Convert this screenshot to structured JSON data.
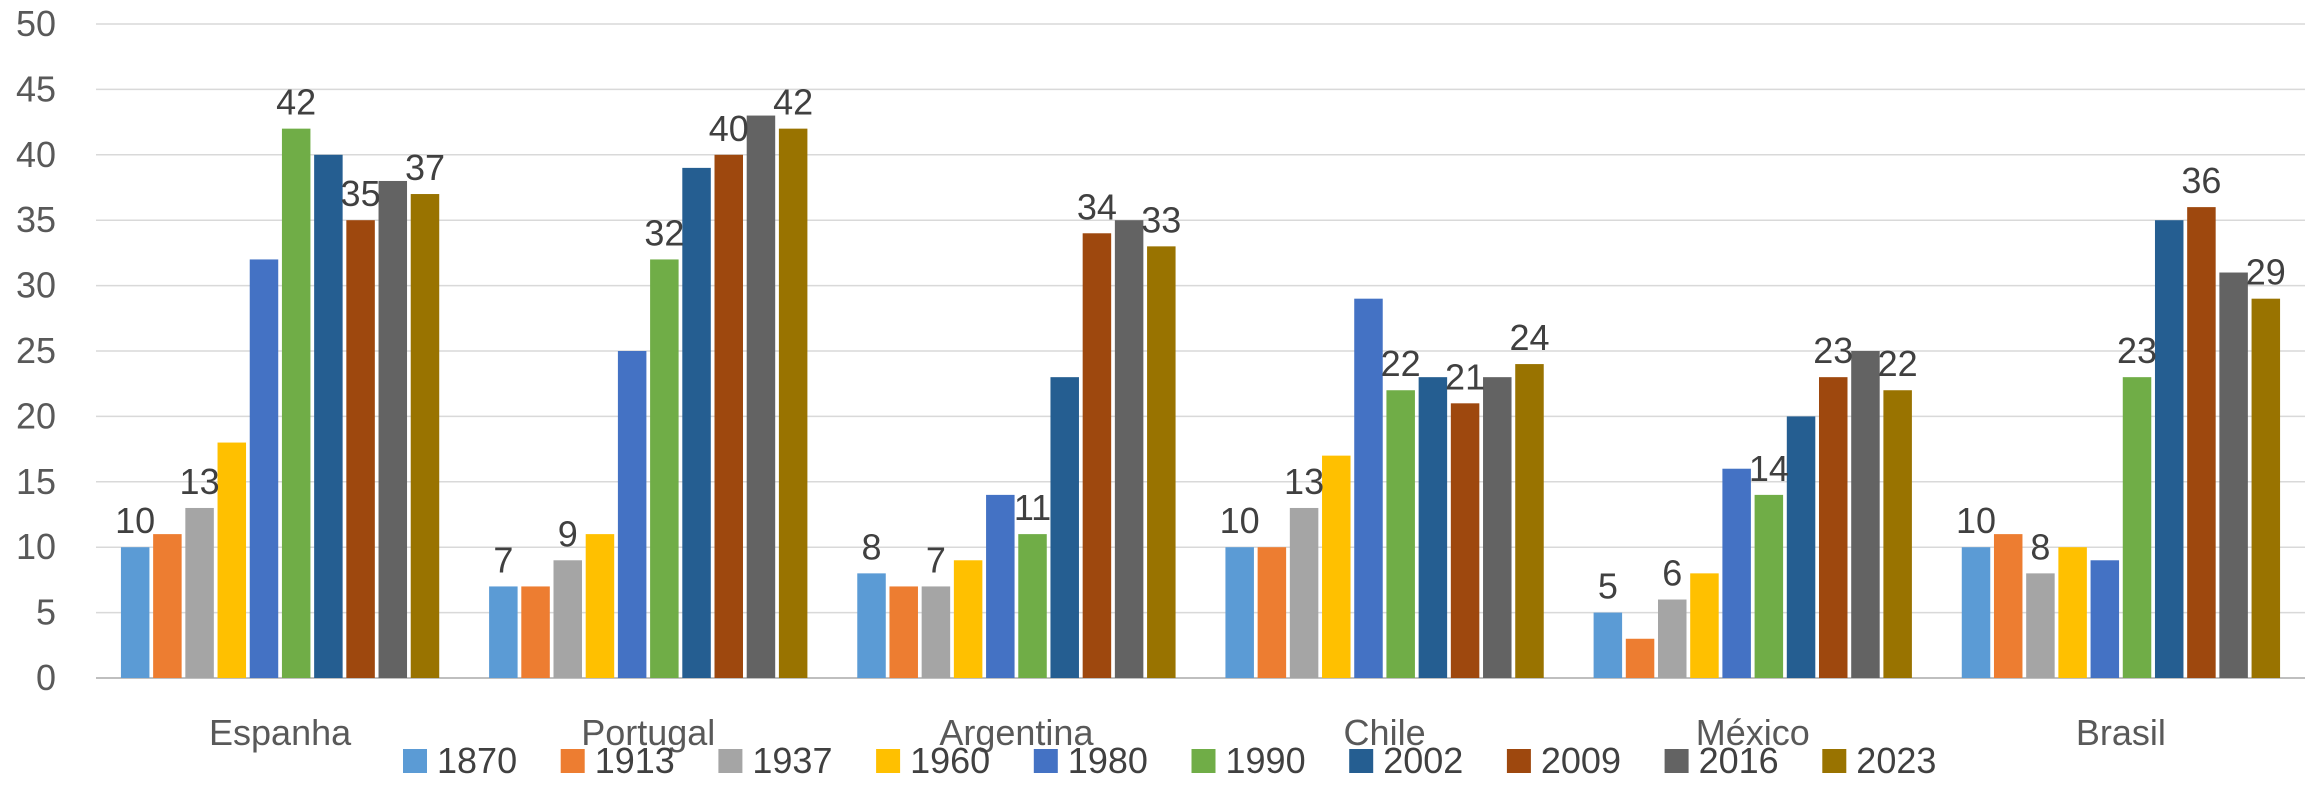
{
  "chart_data": {
    "type": "bar",
    "title": "",
    "xlabel": "",
    "ylabel": "",
    "ylim": [
      0,
      50
    ],
    "yticks": [
      0,
      5,
      10,
      15,
      20,
      25,
      30,
      35,
      40,
      45,
      50
    ],
    "grid": true,
    "legend_position": "bottom",
    "categories": [
      "Espanha",
      "Portugal",
      "Argentina",
      "Chile",
      "México",
      "Brasil"
    ],
    "series": [
      {
        "name": "1870",
        "color": "#5B9BD5",
        "values": [
          10,
          7,
          8,
          10,
          5,
          10
        ]
      },
      {
        "name": "1913",
        "color": "#ED7D31",
        "values": [
          11,
          7,
          7,
          10,
          3,
          11
        ]
      },
      {
        "name": "1937",
        "color": "#A5A5A5",
        "values": [
          13,
          9,
          7,
          13,
          6,
          8
        ]
      },
      {
        "name": "1960",
        "color": "#FFC000",
        "values": [
          18,
          11,
          9,
          17,
          8,
          10
        ]
      },
      {
        "name": "1980",
        "color": "#4472C4",
        "values": [
          32,
          25,
          14,
          29,
          16,
          9
        ]
      },
      {
        "name": "1990",
        "color": "#70AD47",
        "values": [
          42,
          32,
          11,
          22,
          14,
          23
        ]
      },
      {
        "name": "2002",
        "color": "#255E91",
        "values": [
          40,
          39,
          23,
          23,
          20,
          35
        ]
      },
      {
        "name": "2009",
        "color": "#9E480E",
        "values": [
          35,
          40,
          34,
          21,
          23,
          36
        ]
      },
      {
        "name": "2016",
        "color": "#636363",
        "values": [
          38,
          43,
          35,
          23,
          25,
          31
        ]
      },
      {
        "name": "2023",
        "color": "#997300",
        "values": [
          37,
          42,
          33,
          24,
          22,
          29
        ]
      }
    ],
    "data_labels": [
      {
        "category": "Espanha",
        "series": "1870",
        "text": "10"
      },
      {
        "category": "Espanha",
        "series": "1937",
        "text": "13"
      },
      {
        "category": "Espanha",
        "series": "1990",
        "text": "42"
      },
      {
        "category": "Espanha",
        "series": "2009",
        "text": "35"
      },
      {
        "category": "Espanha",
        "series": "2023",
        "text": "37"
      },
      {
        "category": "Portugal",
        "series": "1870",
        "text": "7"
      },
      {
        "category": "Portugal",
        "series": "1937",
        "text": "9"
      },
      {
        "category": "Portugal",
        "series": "1990",
        "text": "32"
      },
      {
        "category": "Portugal",
        "series": "2009",
        "text": "40"
      },
      {
        "category": "Portugal",
        "series": "2023",
        "text": "42"
      },
      {
        "category": "Argentina",
        "series": "1870",
        "text": "8"
      },
      {
        "category": "Argentina",
        "series": "1937",
        "text": "7"
      },
      {
        "category": "Argentina",
        "series": "1990",
        "text": "11"
      },
      {
        "category": "Argentina",
        "series": "2009",
        "text": "34"
      },
      {
        "category": "Argentina",
        "series": "2023",
        "text": "33"
      },
      {
        "category": "Chile",
        "series": "1870",
        "text": "10"
      },
      {
        "category": "Chile",
        "series": "1937",
        "text": "13"
      },
      {
        "category": "Chile",
        "series": "1990",
        "text": "22"
      },
      {
        "category": "Chile",
        "series": "2009",
        "text": "21"
      },
      {
        "category": "Chile",
        "series": "2023",
        "text": "24"
      },
      {
        "category": "México",
        "series": "1870",
        "text": "5"
      },
      {
        "category": "México",
        "series": "1937",
        "text": "6"
      },
      {
        "category": "México",
        "series": "1990",
        "text": "14"
      },
      {
        "category": "México",
        "series": "2009",
        "text": "23"
      },
      {
        "category": "México",
        "series": "2023",
        "text": "22"
      },
      {
        "category": "Brasil",
        "series": "1870",
        "text": "10"
      },
      {
        "category": "Brasil",
        "series": "1937",
        "text": "8"
      },
      {
        "category": "Brasil",
        "series": "1990",
        "text": "23"
      },
      {
        "category": "Brasil",
        "series": "2009",
        "text": "36"
      },
      {
        "category": "Brasil",
        "series": "2023",
        "text": "29"
      }
    ]
  }
}
